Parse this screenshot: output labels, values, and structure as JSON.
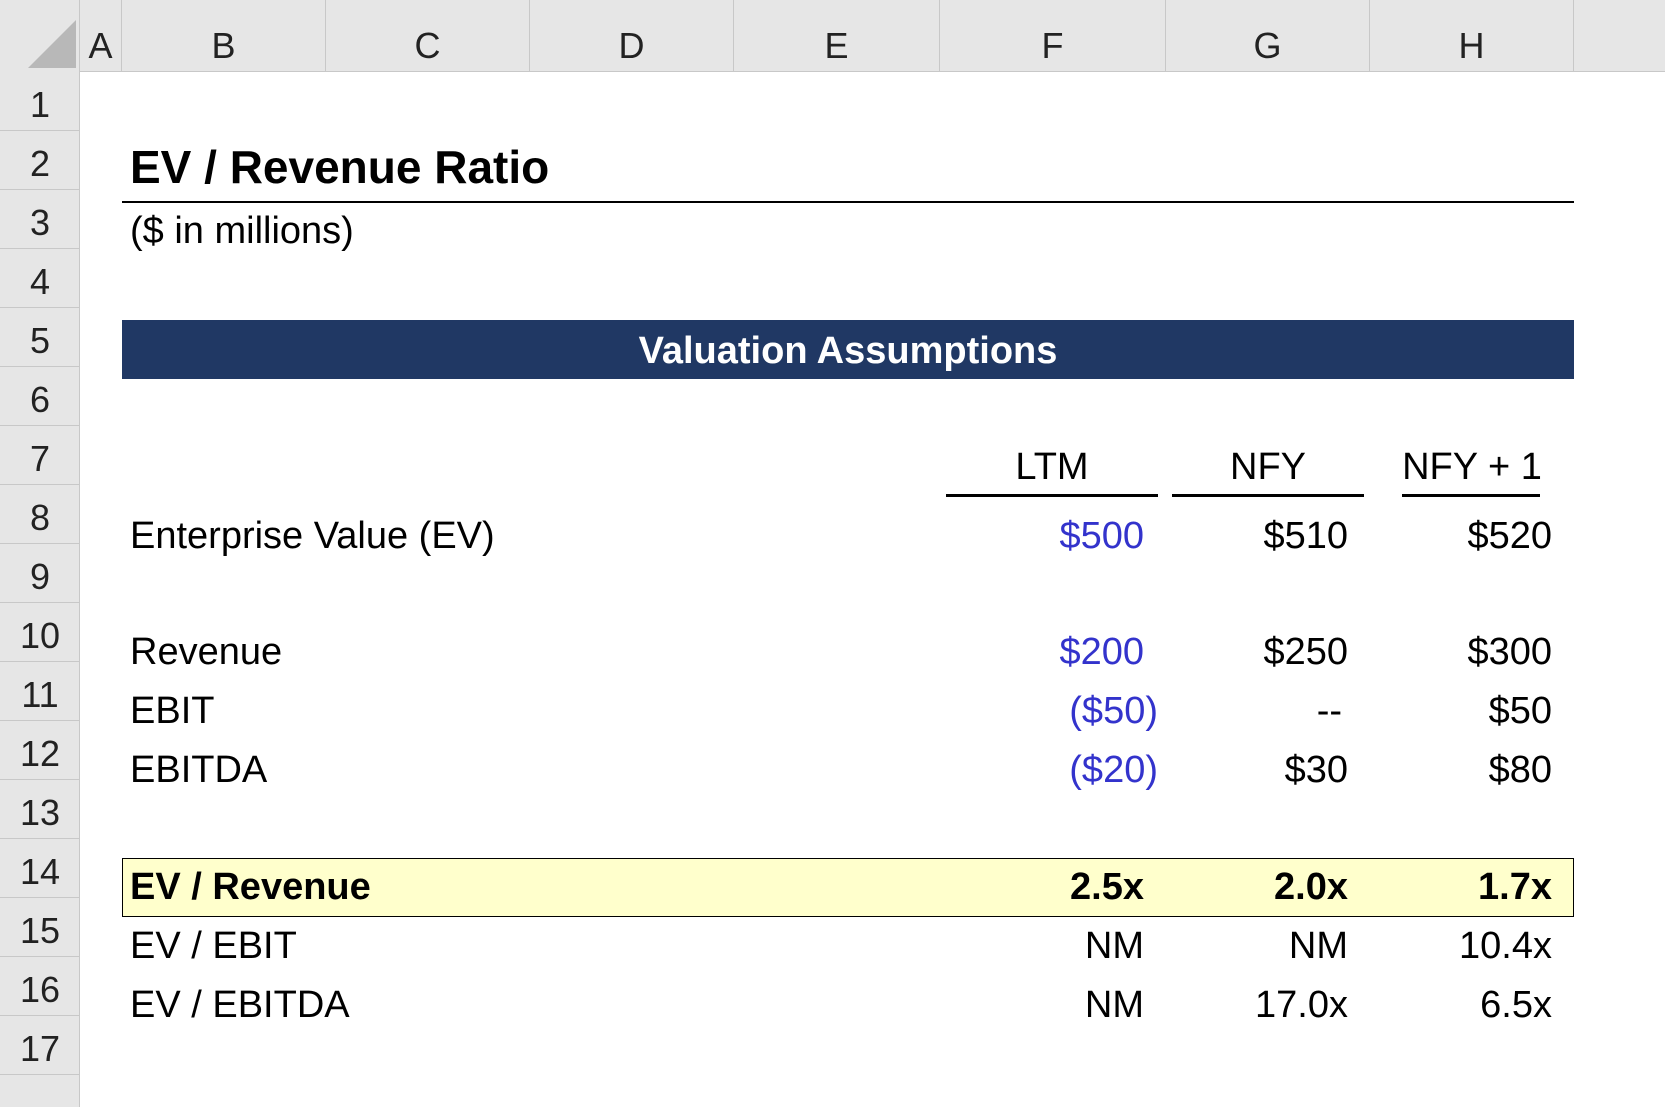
{
  "columns": [
    "A",
    "B",
    "C",
    "D",
    "E",
    "F",
    "G",
    "H"
  ],
  "rows": [
    "1",
    "2",
    "3",
    "4",
    "5",
    "6",
    "7",
    "8",
    "9",
    "10",
    "11",
    "12",
    "13",
    "14",
    "15",
    "16",
    "17"
  ],
  "sheet": {
    "title": "EV / Revenue Ratio",
    "subtitle": "($ in millions)",
    "banner": "Valuation Assumptions",
    "periods": [
      "LTM",
      "NFY",
      "NFY + 1"
    ],
    "inputs": [
      {
        "label": "Enterprise Value (EV)",
        "values": [
          "$500",
          "$510",
          "$520"
        ]
      },
      {
        "label": "Revenue",
        "values": [
          "$200",
          "$250",
          "$300"
        ]
      },
      {
        "label": "EBIT",
        "values": [
          "($50)",
          "--",
          "$50"
        ]
      },
      {
        "label": "EBITDA",
        "values": [
          "($20)",
          "$30",
          "$80"
        ]
      }
    ],
    "multiples": [
      {
        "label": "EV / Revenue",
        "values": [
          "2.5x",
          "2.0x",
          "1.7x"
        ]
      },
      {
        "label": "EV / EBIT",
        "values": [
          "NM",
          "NM",
          "10.4x"
        ]
      },
      {
        "label": "EV / EBITDA",
        "values": [
          "NM",
          "17.0x",
          "6.5x"
        ]
      }
    ]
  },
  "colors": {
    "banner_bg": "#203864",
    "input_font": "#3333cc",
    "highlight_bg": "#ffffcc",
    "header_bg": "#e6e6e6"
  }
}
